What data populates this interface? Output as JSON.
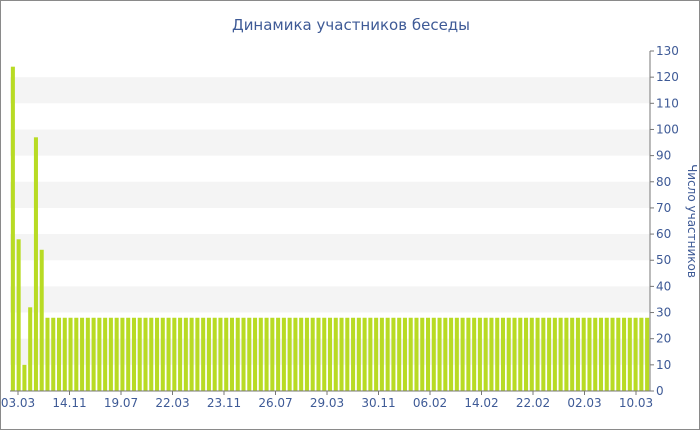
{
  "chart_data": {
    "type": "bar",
    "title": "Динамика участников беседы",
    "xlabel": "",
    "ylabel": "Число участников",
    "ylim": [
      0,
      130
    ],
    "y_ticks": [
      0,
      10,
      20,
      30,
      40,
      50,
      60,
      70,
      80,
      90,
      100,
      110,
      120,
      130
    ],
    "y_axis_position": "right",
    "grid": "alternating horizontal bands",
    "legend": "none",
    "bar_color": "#b8db24",
    "band_color": "#f4f4f4",
    "x_tick_labels": [
      "03.03",
      "14.11",
      "19.07",
      "22.03",
      "23.11",
      "26.07",
      "29.03",
      "30.11",
      "06.02",
      "14.02",
      "22.02",
      "02.03",
      "10.03"
    ],
    "values": [
      124,
      58,
      10,
      32,
      97,
      54,
      28,
      28,
      28,
      28,
      28,
      28,
      28,
      28,
      28,
      28,
      28,
      28,
      28,
      28,
      28,
      28,
      28,
      28,
      28,
      28,
      28,
      28,
      28,
      28,
      28,
      28,
      28,
      28,
      28,
      28,
      28,
      28,
      28,
      28,
      28,
      28,
      28,
      28,
      28,
      28,
      28,
      28,
      28,
      28,
      28,
      28,
      28,
      28,
      28,
      28,
      28,
      28,
      28,
      28,
      28,
      28,
      28,
      28,
      28,
      28,
      28,
      28,
      28,
      28,
      28,
      28,
      28,
      28,
      28,
      28,
      28,
      28,
      28,
      28,
      28,
      28,
      28,
      28,
      28,
      28,
      28,
      28,
      28,
      28,
      28,
      28,
      28,
      28,
      28,
      28,
      28,
      28,
      28,
      28,
      28,
      28,
      28,
      28,
      28,
      28,
      28,
      28,
      28,
      28,
      28
    ]
  }
}
